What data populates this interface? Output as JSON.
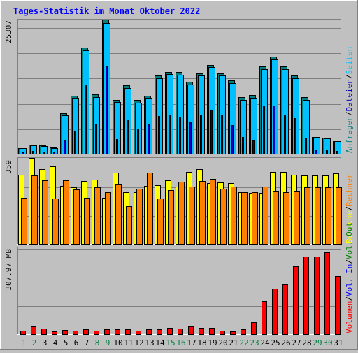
{
  "title": "Tages-Statistik im Monat Oktober 2022",
  "colors": {
    "background": "#c0c0c0",
    "title": "#0000ff",
    "frame_dark": "#7f7f7f",
    "frame_light": "#ffffff",
    "gridline": "#7f7f7f",
    "anfragen": "#008080",
    "dateien": "#0000c0",
    "seiten": "#00c0ff",
    "besuche": "#ffff00",
    "rechner": "#ff8000",
    "volumen": "#ff0000",
    "in": "#0000ff",
    "out": "#008000",
    "weekend_day": "#008040",
    "weekday_day": "#000000"
  },
  "right_labels": {
    "panel1": [
      {
        "text": "Anfragen",
        "color": "#008080"
      },
      {
        "text": "Dateien",
        "color": "#0000c0"
      },
      {
        "text": "Seiten",
        "color": "#00c0ff"
      }
    ],
    "panel2": [
      {
        "text": "Besuche",
        "color": "#ffff00"
      },
      {
        "text": "Rechner",
        "color": "#ff8000"
      }
    ],
    "panel3": [
      {
        "text": "Volumen",
        "color": "#ff0000"
      },
      {
        "text": "Vol. In",
        "color": "#0000ff"
      },
      {
        "text": "Vol. Out",
        "color": "#008000"
      }
    ],
    "separator": "/"
  },
  "chart_data": [
    {
      "type": "bar",
      "ylabel_max": "25307",
      "ylim": [
        0,
        25307
      ],
      "grid": true,
      "categories": [
        "1",
        "2",
        "3",
        "4",
        "5",
        "6",
        "7",
        "8",
        "9",
        "10",
        "11",
        "12",
        "13",
        "14",
        "15",
        "16",
        "17",
        "18",
        "19",
        "20",
        "21",
        "22",
        "23",
        "24",
        "25",
        "26",
        "27",
        "28",
        "29",
        "30",
        "31"
      ],
      "weekend_days": [
        "1",
        "2",
        "8",
        "9",
        "15",
        "16",
        "22",
        "23",
        "29",
        "30"
      ],
      "series": [
        {
          "name": "Anfragen",
          "values": [
            1100,
            1750,
            1550,
            1150,
            7600,
            11000,
            20000,
            11200,
            25300,
            10200,
            12900,
            10100,
            10900,
            14800,
            15400,
            15400,
            13600,
            15200,
            16800,
            15200,
            13800,
            10700,
            11100,
            16500,
            18300,
            16500,
            14700,
            10700,
            3200,
            3000,
            2500
          ]
        },
        {
          "name": "Dateien",
          "values": [
            1000,
            1600,
            1400,
            1050,
            7200,
            10500,
            19500,
            10700,
            24700,
            9800,
            12400,
            9600,
            10500,
            14300,
            15000,
            14900,
            13100,
            14700,
            16300,
            14700,
            13300,
            10200,
            10600,
            16000,
            17800,
            16000,
            14200,
            10200,
            3100,
            2900,
            2400
          ]
        },
        {
          "name": "Seiten",
          "values": [
            300,
            500,
            400,
            300,
            2700,
            4400,
            13000,
            5500,
            16500,
            2800,
            6400,
            4700,
            5600,
            7100,
            7400,
            6800,
            5900,
            7400,
            8300,
            7300,
            5400,
            3200,
            2700,
            8900,
            9100,
            7400,
            6700,
            2900,
            700,
            600,
            500
          ]
        }
      ]
    },
    {
      "type": "bar",
      "ylabel_max": "359",
      "ylim": [
        0,
        359
      ],
      "grid": true,
      "categories": [
        "1",
        "2",
        "3",
        "4",
        "5",
        "6",
        "7",
        "8",
        "9",
        "10",
        "11",
        "12",
        "13",
        "14",
        "15",
        "16",
        "17",
        "18",
        "19",
        "20",
        "21",
        "22",
        "23",
        "24",
        "25",
        "26",
        "27",
        "28",
        "29",
        "30",
        "31"
      ],
      "series": [
        {
          "name": "Besuche",
          "values": [
            289,
            359,
            311,
            323,
            242,
            236,
            263,
            268,
            193,
            298,
            215,
            217,
            243,
            244,
            266,
            240,
            301,
            312,
            254,
            257,
            255,
            217,
            214,
            213,
            300,
            300,
            290,
            287,
            286,
            286,
            295
          ]
        },
        {
          "name": "Rechner",
          "values": [
            194,
            286,
            266,
            190,
            266,
            228,
            194,
            235,
            216,
            250,
            158,
            232,
            299,
            189,
            224,
            259,
            239,
            264,
            270,
            230,
            240,
            217,
            216,
            238,
            222,
            217,
            223,
            237,
            237,
            235,
            236
          ]
        }
      ]
    },
    {
      "type": "bar",
      "ylabel_max": "307.97 MB",
      "ylim": [
        0,
        307.97
      ],
      "grid": true,
      "categories": [
        "1",
        "2",
        "3",
        "4",
        "5",
        "6",
        "7",
        "8",
        "9",
        "10",
        "11",
        "12",
        "13",
        "14",
        "15",
        "16",
        "17",
        "18",
        "19",
        "20",
        "21",
        "22",
        "23",
        "24",
        "25",
        "26",
        "27",
        "28",
        "29",
        "30",
        "31"
      ],
      "series": [
        {
          "name": "Volumen",
          "values": [
            11.8,
            26.3,
            19.3,
            10.2,
            14.4,
            11.3,
            17.4,
            11.3,
            17.5,
            16.8,
            18.7,
            13.0,
            16.3,
            18.6,
            22.7,
            20.1,
            27.1,
            22.7,
            23.4,
            11.6,
            10.1,
            17.3,
            42.1,
            116.8,
            162.3,
            178.2,
            243.9,
            278.3,
            278.5,
            293.1,
            208.8
          ]
        }
      ]
    }
  ]
}
